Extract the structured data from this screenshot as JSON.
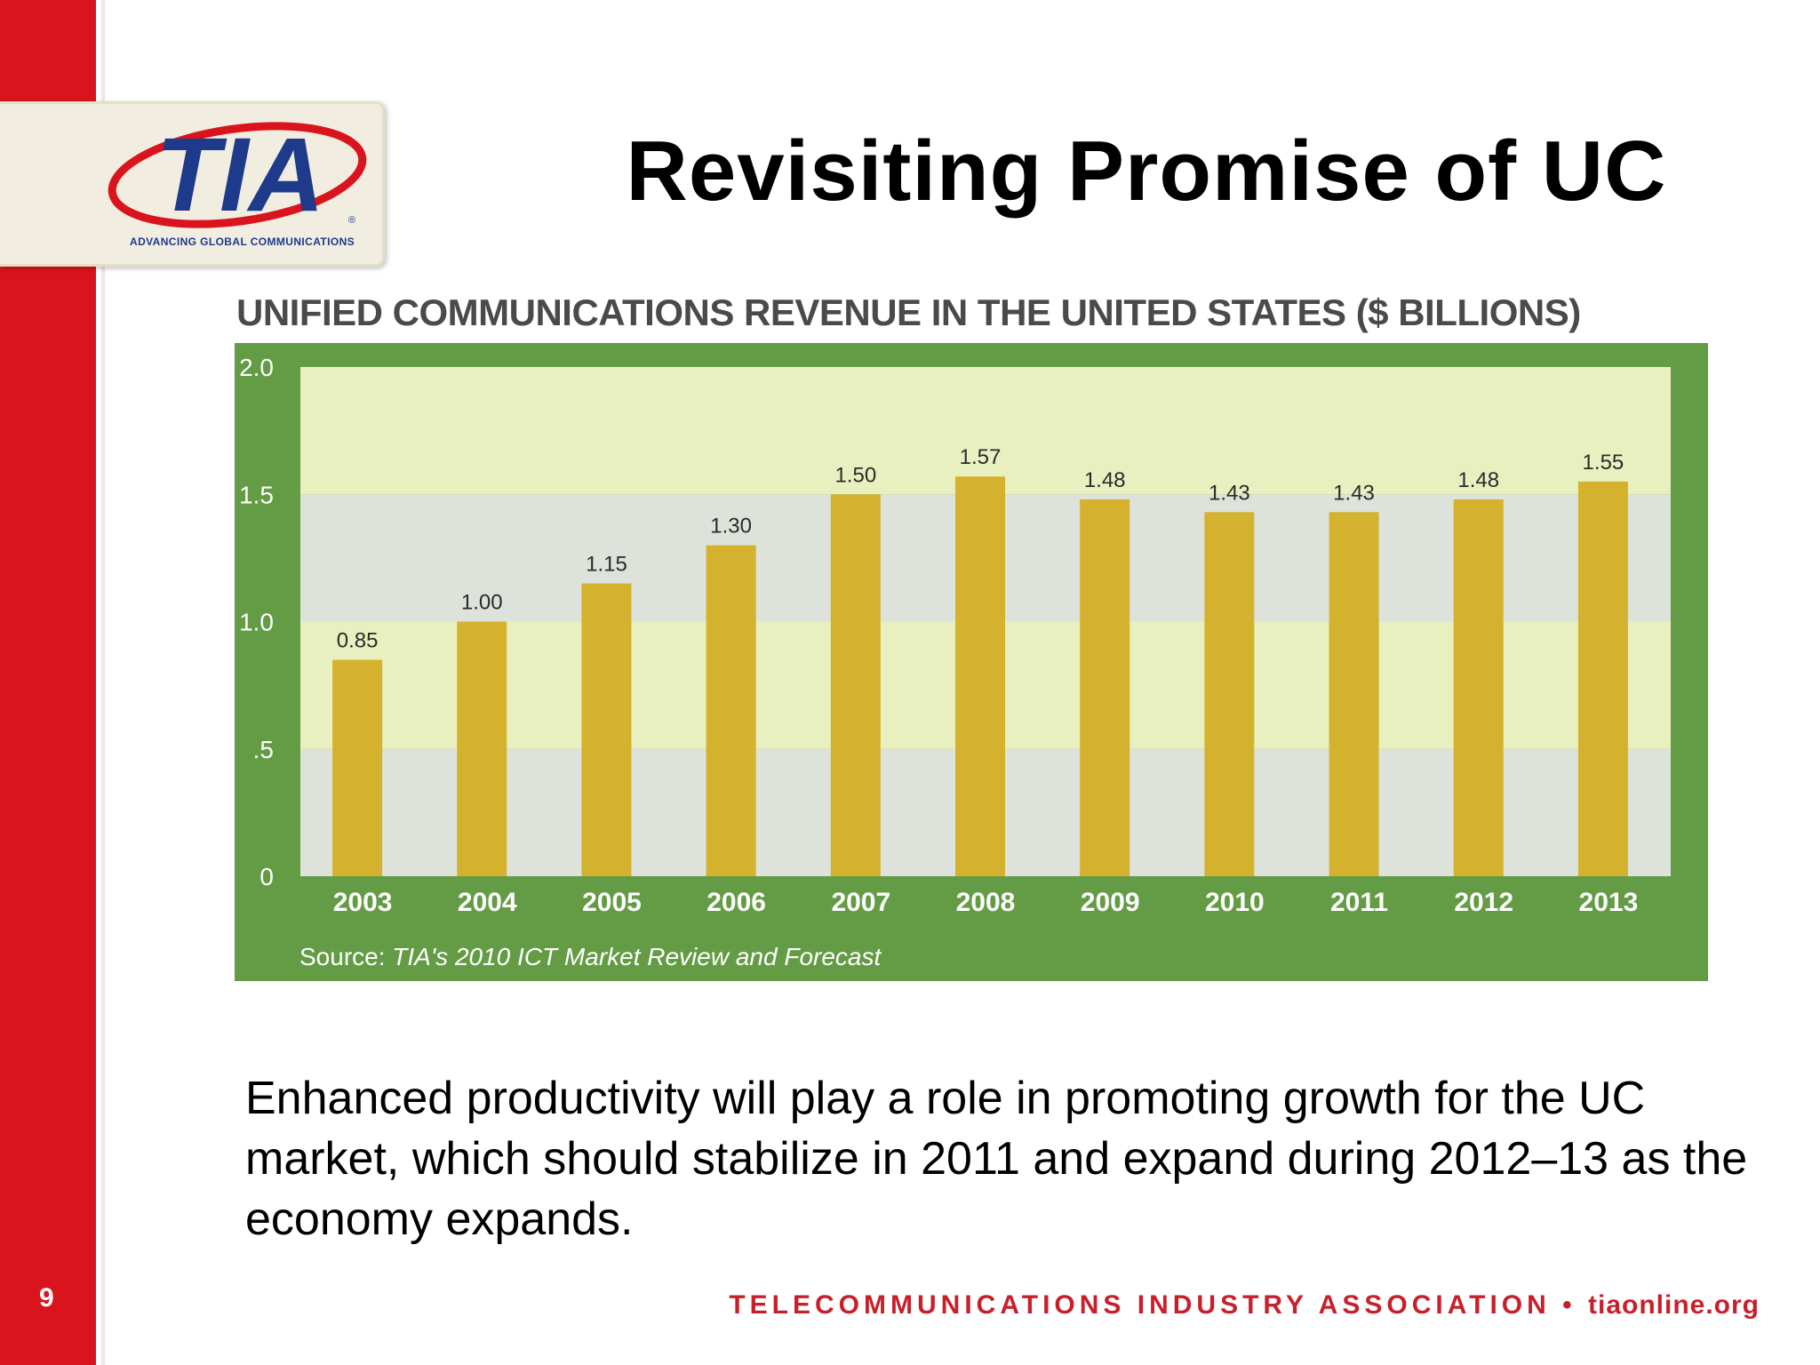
{
  "slide": {
    "title": "Revisiting Promise of UC",
    "number": "9",
    "body": "Enhanced productivity will play a role in promoting growth for the UC market, which should stabilize in 2011 and expand during 2012–13 as the economy expands.",
    "footer_org": "TELECOMMUNICATIONS INDUSTRY ASSOCIATION",
    "footer_separator": "•",
    "footer_site": "tiaonline.org"
  },
  "logo": {
    "mark": "TIA",
    "tagline": "ADVANCING GLOBAL COMMUNICATIONS",
    "registered": "®"
  },
  "colors": {
    "accent_red": "#d9141c",
    "chart_frame": "#639c44",
    "bar": "#d4b22e",
    "band_light": "#e8f0c0",
    "band_gray": "#dde3da",
    "logo_blue": "#1e3a8a"
  },
  "chart_data": {
    "type": "bar",
    "title": "UNIFIED COMMUNICATIONS REVENUE IN THE UNITED STATES ($ BILLIONS)",
    "categories": [
      "2003",
      "2004",
      "2005",
      "2006",
      "2007",
      "2008",
      "2009",
      "2010",
      "2011",
      "2012",
      "2013"
    ],
    "values": [
      0.85,
      1.0,
      1.15,
      1.3,
      1.5,
      1.57,
      1.48,
      1.43,
      1.43,
      1.48,
      1.55
    ],
    "value_labels": [
      "0.85",
      "1.00",
      "1.15",
      "1.30",
      "1.50",
      "1.57",
      "1.48",
      "1.43",
      "1.43",
      "1.48",
      "1.55"
    ],
    "yticks": [
      "0",
      ".5",
      "1.0",
      "1.5",
      "2.0"
    ],
    "ytick_values": [
      0,
      0.5,
      1.0,
      1.5,
      2.0
    ],
    "ylim": [
      0,
      2.0
    ],
    "source_prefix": "Source: ",
    "source_italic": "TIA's 2010 ICT Market Review and Forecast",
    "grid": "alternating horizontal bands",
    "legend": "none"
  }
}
